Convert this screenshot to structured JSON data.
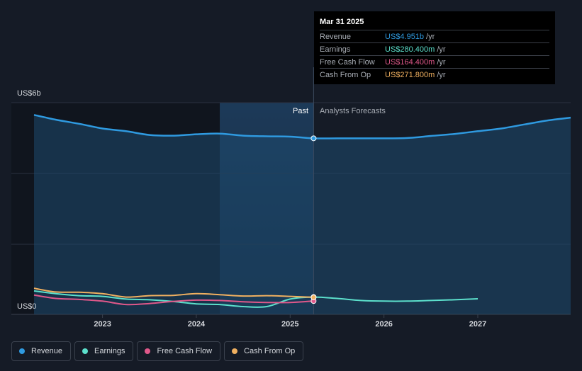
{
  "tooltip": {
    "date": "Mar 31 2025",
    "rows": [
      {
        "label": "Revenue",
        "value": "US$4.951b",
        "unit": "/yr",
        "color": "#2f9ae0"
      },
      {
        "label": "Earnings",
        "value": "US$280.400m",
        "unit": "/yr",
        "color": "#5ce0cc"
      },
      {
        "label": "Free Cash Flow",
        "value": "US$164.400m",
        "unit": "/yr",
        "color": "#e0588a"
      },
      {
        "label": "Cash From Op",
        "value": "US$271.800m",
        "unit": "/yr",
        "color": "#f0b060"
      }
    ]
  },
  "chart_data": {
    "type": "line",
    "y_axis_labels": [
      "US$6b",
      "US$0"
    ],
    "ylim": [
      0,
      6
    ],
    "unit": "US$ billions",
    "xlim": [
      2022.27,
      2027.99
    ],
    "x_ticks": [
      2023,
      2024,
      2025,
      2026,
      2027
    ],
    "past_label": "Past",
    "forecast_label": "Analysts Forecasts",
    "divider_x": 2025.25,
    "forecast_shade_start": 2024.25,
    "series": [
      {
        "name": "Revenue",
        "color": "#2f9ae0",
        "area": true,
        "points": [
          [
            2022.27,
            5.64
          ],
          [
            2022.5,
            5.5
          ],
          [
            2022.75,
            5.38
          ],
          [
            2023.0,
            5.24
          ],
          [
            2023.25,
            5.16
          ],
          [
            2023.5,
            5.05
          ],
          [
            2023.75,
            5.03
          ],
          [
            2024.0,
            5.07
          ],
          [
            2024.25,
            5.09
          ],
          [
            2024.5,
            5.03
          ],
          [
            2024.75,
            5.01
          ],
          [
            2025.0,
            5.0
          ],
          [
            2025.25,
            4.951
          ],
          [
            2025.5,
            4.951
          ],
          [
            2025.75,
            4.951
          ],
          [
            2026.0,
            4.951
          ],
          [
            2026.25,
            4.96
          ],
          [
            2026.5,
            5.02
          ],
          [
            2026.75,
            5.08
          ],
          [
            2027.0,
            5.16
          ],
          [
            2027.25,
            5.24
          ],
          [
            2027.5,
            5.36
          ],
          [
            2027.75,
            5.48
          ],
          [
            2027.99,
            5.56
          ]
        ]
      },
      {
        "name": "Earnings",
        "color": "#5ce0cc",
        "area": false,
        "points": [
          [
            2022.27,
            0.46
          ],
          [
            2022.5,
            0.38
          ],
          [
            2022.75,
            0.32
          ],
          [
            2023.0,
            0.3
          ],
          [
            2023.25,
            0.22
          ],
          [
            2023.5,
            0.2
          ],
          [
            2023.75,
            0.15
          ],
          [
            2024.0,
            0.08
          ],
          [
            2024.25,
            0.06
          ],
          [
            2024.5,
            0.0
          ],
          [
            2024.75,
            0.0
          ],
          [
            2025.0,
            0.22
          ],
          [
            2025.25,
            0.28
          ],
          [
            2025.5,
            0.24
          ],
          [
            2025.75,
            0.18
          ],
          [
            2026.0,
            0.16
          ],
          [
            2026.25,
            0.16
          ],
          [
            2026.5,
            0.18
          ],
          [
            2026.75,
            0.2
          ],
          [
            2027.0,
            0.23
          ]
        ]
      },
      {
        "name": "Free Cash Flow",
        "color": "#e0588a",
        "area": false,
        "points": [
          [
            2022.27,
            0.34
          ],
          [
            2022.5,
            0.24
          ],
          [
            2022.75,
            0.21
          ],
          [
            2023.0,
            0.16
          ],
          [
            2023.25,
            0.06
          ],
          [
            2023.5,
            0.09
          ],
          [
            2023.75,
            0.15
          ],
          [
            2024.0,
            0.19
          ],
          [
            2024.25,
            0.18
          ],
          [
            2024.5,
            0.14
          ],
          [
            2024.75,
            0.12
          ],
          [
            2025.0,
            0.12
          ],
          [
            2025.25,
            0.164
          ]
        ]
      },
      {
        "name": "Cash From Op",
        "color": "#f0b060",
        "area": false,
        "points": [
          [
            2022.27,
            0.54
          ],
          [
            2022.5,
            0.43
          ],
          [
            2022.75,
            0.42
          ],
          [
            2023.0,
            0.38
          ],
          [
            2023.25,
            0.28
          ],
          [
            2023.5,
            0.32
          ],
          [
            2023.75,
            0.33
          ],
          [
            2024.0,
            0.38
          ],
          [
            2024.25,
            0.35
          ],
          [
            2024.5,
            0.31
          ],
          [
            2024.75,
            0.32
          ],
          [
            2025.0,
            0.3
          ],
          [
            2025.25,
            0.272
          ]
        ]
      }
    ]
  },
  "legend": [
    {
      "label": "Revenue",
      "color": "#2f9ae0"
    },
    {
      "label": "Earnings",
      "color": "#5ce0cc"
    },
    {
      "label": "Free Cash Flow",
      "color": "#e0588a"
    },
    {
      "label": "Cash From Op",
      "color": "#f0b060"
    }
  ]
}
